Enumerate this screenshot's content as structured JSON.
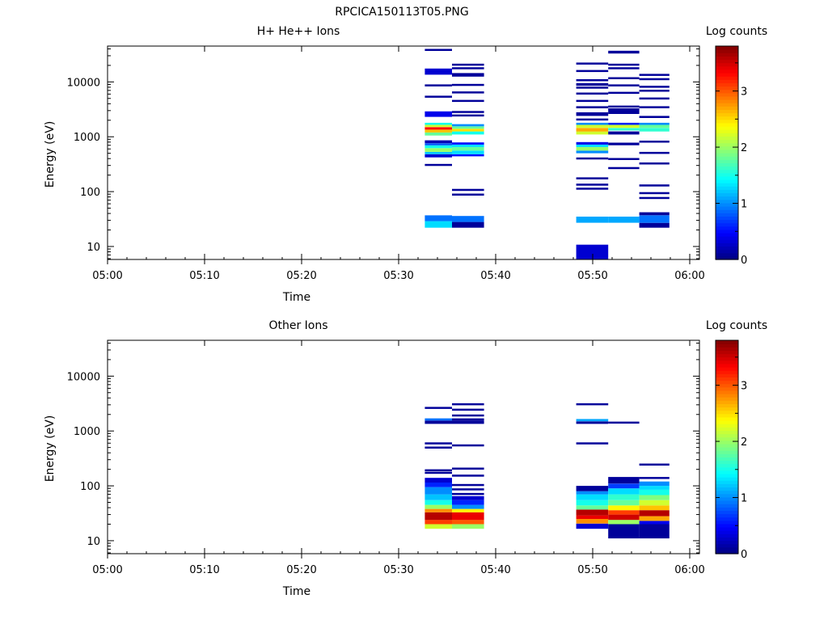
{
  "figure": {
    "title": "RPCICA150113T05.PNG"
  },
  "chart_data": [
    {
      "type": "heatmap",
      "title": "H+ He++ Ions",
      "xlabel": "Time",
      "ylabel": "Energy (eV)",
      "xticks": [
        "05:00",
        "05:10",
        "05:20",
        "05:30",
        "05:40",
        "05:50",
        "06:00"
      ],
      "xlim_minutes": [
        0,
        61
      ],
      "yscale": "log",
      "ylim": [
        5.8,
        45000
      ],
      "yticks": [
        "10",
        "100",
        "1000",
        "10000"
      ],
      "colorbar": {
        "label": "Log counts",
        "range": [
          0,
          3.8
        ],
        "ticks": [
          "0",
          "1",
          "2",
          "3"
        ]
      },
      "columns": [
        {
          "t0": 32.7,
          "t1": 35.5,
          "bins": [
            {
              "e0": 22,
              "e1": 29,
              "v": 1.3
            },
            {
              "e0": 29,
              "e1": 37,
              "v": 0.9
            },
            {
              "e0": 300,
              "e1": 320,
              "v": 0.1
            },
            {
              "e0": 420,
              "e1": 480,
              "v": 0.3
            },
            {
              "e0": 480,
              "e1": 530,
              "v": 1.2
            },
            {
              "e0": 530,
              "e1": 620,
              "v": 2.0
            },
            {
              "e0": 620,
              "e1": 700,
              "v": 1.5
            },
            {
              "e0": 700,
              "e1": 760,
              "v": 0.8
            },
            {
              "e0": 760,
              "e1": 860,
              "v": 0.2
            },
            {
              "e0": 1050,
              "e1": 1200,
              "v": 1.8
            },
            {
              "e0": 1200,
              "e1": 1350,
              "v": 2.6
            },
            {
              "e0": 1350,
              "e1": 1500,
              "v": 3.3
            },
            {
              "e0": 1500,
              "e1": 1650,
              "v": 2.2
            },
            {
              "e0": 1650,
              "e1": 1800,
              "v": 1.5
            },
            {
              "e0": 2300,
              "e1": 2900,
              "v": 0.4
            },
            {
              "e0": 5300,
              "e1": 5600,
              "v": 0.1
            },
            {
              "e0": 8600,
              "e1": 9000,
              "v": 0.1
            },
            {
              "e0": 13500,
              "e1": 17500,
              "v": 0.3
            },
            {
              "e0": 38000,
              "e1": 40000,
              "v": 0.1
            }
          ]
        },
        {
          "t0": 35.5,
          "t1": 38.8,
          "bins": [
            {
              "e0": 22,
              "e1": 28,
              "v": 0.1
            },
            {
              "e0": 28,
              "e1": 36,
              "v": 0.9
            },
            {
              "e0": 85,
              "e1": 92,
              "v": 0.1
            },
            {
              "e0": 105,
              "e1": 112,
              "v": 0.1
            },
            {
              "e0": 440,
              "e1": 480,
              "v": 0.5
            },
            {
              "e0": 480,
              "e1": 560,
              "v": 1.3
            },
            {
              "e0": 560,
              "e1": 650,
              "v": 1.8
            },
            {
              "e0": 650,
              "e1": 720,
              "v": 1.3
            },
            {
              "e0": 720,
              "e1": 790,
              "v": 0.5
            },
            {
              "e0": 1100,
              "e1": 1250,
              "v": 1.5
            },
            {
              "e0": 1250,
              "e1": 1400,
              "v": 2.5
            },
            {
              "e0": 1400,
              "e1": 1550,
              "v": 1.8
            },
            {
              "e0": 1550,
              "e1": 1700,
              "v": 1.0
            },
            {
              "e0": 2400,
              "e1": 2550,
              "v": 0.1
            },
            {
              "e0": 2800,
              "e1": 2950,
              "v": 0.1
            },
            {
              "e0": 4500,
              "e1": 4700,
              "v": 0.1
            },
            {
              "e0": 6400,
              "e1": 6700,
              "v": 0.1
            },
            {
              "e0": 8700,
              "e1": 9200,
              "v": 0.1
            },
            {
              "e0": 12500,
              "e1": 14500,
              "v": 0.1
            },
            {
              "e0": 17500,
              "e1": 18500,
              "v": 0.1
            },
            {
              "e0": 20500,
              "e1": 21500,
              "v": 0.1
            }
          ]
        },
        {
          "t0": 48.3,
          "t1": 51.6,
          "bins": [
            {
              "e0": 5.8,
              "e1": 10.8,
              "v": 0.3
            },
            {
              "e0": 27,
              "e1": 35,
              "v": 1.1
            },
            {
              "e0": 110,
              "e1": 118,
              "v": 0.1
            },
            {
              "e0": 130,
              "e1": 140,
              "v": 0.1
            },
            {
              "e0": 175,
              "e1": 182,
              "v": 0.1
            },
            {
              "e0": 400,
              "e1": 420,
              "v": 0.1
            },
            {
              "e0": 500,
              "e1": 560,
              "v": 1.0
            },
            {
              "e0": 560,
              "e1": 650,
              "v": 2.0
            },
            {
              "e0": 650,
              "e1": 720,
              "v": 1.3
            },
            {
              "e0": 720,
              "e1": 800,
              "v": 0.4
            },
            {
              "e0": 1100,
              "e1": 1250,
              "v": 2.2
            },
            {
              "e0": 1250,
              "e1": 1450,
              "v": 2.7
            },
            {
              "e0": 1450,
              "e1": 1650,
              "v": 2.2
            },
            {
              "e0": 1650,
              "e1": 1800,
              "v": 1.0
            },
            {
              "e0": 2000,
              "e1": 2150,
              "v": 0.1
            },
            {
              "e0": 2400,
              "e1": 2800,
              "v": 0.1
            },
            {
              "e0": 3300,
              "e1": 3600,
              "v": 0.1
            },
            {
              "e0": 4400,
              "e1": 4700,
              "v": 0.1
            },
            {
              "e0": 6000,
              "e1": 6400,
              "v": 0.1
            },
            {
              "e0": 7800,
              "e1": 8200,
              "v": 0.1
            },
            {
              "e0": 8500,
              "e1": 9500,
              "v": 0.1
            },
            {
              "e0": 10500,
              "e1": 11200,
              "v": 0.1
            },
            {
              "e0": 15500,
              "e1": 16500,
              "v": 0.1
            },
            {
              "e0": 21000,
              "e1": 22500,
              "v": 0.1
            }
          ]
        },
        {
          "t0": 51.6,
          "t1": 54.8,
          "bins": [
            {
              "e0": 27,
              "e1": 35,
              "v": 1.1
            },
            {
              "e0": 260,
              "e1": 280,
              "v": 0.1
            },
            {
              "e0": 380,
              "e1": 410,
              "v": 0.1
            },
            {
              "e0": 700,
              "e1": 780,
              "v": 0.1
            },
            {
              "e0": 1100,
              "e1": 1250,
              "v": 0.1
            },
            {
              "e0": 1300,
              "e1": 1450,
              "v": 1.6
            },
            {
              "e0": 1450,
              "e1": 1650,
              "v": 2.2
            },
            {
              "e0": 1650,
              "e1": 1800,
              "v": 0.6
            },
            {
              "e0": 2600,
              "e1": 3300,
              "v": 0.1
            },
            {
              "e0": 3400,
              "e1": 3700,
              "v": 0.1
            },
            {
              "e0": 6300,
              "e1": 6600,
              "v": 0.1
            },
            {
              "e0": 8500,
              "e1": 9000,
              "v": 0.1
            },
            {
              "e0": 11500,
              "e1": 12200,
              "v": 0.1
            },
            {
              "e0": 17500,
              "e1": 18500,
              "v": 0.1
            },
            {
              "e0": 20500,
              "e1": 21500,
              "v": 0.1
            },
            {
              "e0": 33000,
              "e1": 37000,
              "v": 0.1
            }
          ]
        },
        {
          "t0": 54.8,
          "t1": 57.9,
          "bins": [
            {
              "e0": 22,
              "e1": 27,
              "v": 0.1
            },
            {
              "e0": 27,
              "e1": 37,
              "v": 0.9
            },
            {
              "e0": 37,
              "e1": 42,
              "v": 0.1
            },
            {
              "e0": 75,
              "e1": 80,
              "v": 0.1
            },
            {
              "e0": 92,
              "e1": 98,
              "v": 0.1
            },
            {
              "e0": 125,
              "e1": 135,
              "v": 0.1
            },
            {
              "e0": 320,
              "e1": 340,
              "v": 0.1
            },
            {
              "e0": 500,
              "e1": 530,
              "v": 0.1
            },
            {
              "e0": 800,
              "e1": 850,
              "v": 0.1
            },
            {
              "e0": 1250,
              "e1": 1450,
              "v": 1.6
            },
            {
              "e0": 1450,
              "e1": 1650,
              "v": 1.8
            },
            {
              "e0": 1650,
              "e1": 1800,
              "v": 1.0
            },
            {
              "e0": 2200,
              "e1": 2400,
              "v": 0.1
            },
            {
              "e0": 3400,
              "e1": 3600,
              "v": 0.1
            },
            {
              "e0": 4900,
              "e1": 5200,
              "v": 0.1
            },
            {
              "e0": 6800,
              "e1": 7200,
              "v": 0.1
            },
            {
              "e0": 8000,
              "e1": 8500,
              "v": 0.1
            },
            {
              "e0": 11000,
              "e1": 11700,
              "v": 0.1
            },
            {
              "e0": 13000,
              "e1": 14000,
              "v": 0.1
            }
          ]
        }
      ]
    },
    {
      "type": "heatmap",
      "title": "Other Ions",
      "xlabel": "Time",
      "ylabel": "Energy (eV)",
      "xticks": [
        "05:00",
        "05:10",
        "05:20",
        "05:30",
        "05:40",
        "05:50",
        "06:00"
      ],
      "xlim_minutes": [
        0,
        61
      ],
      "yscale": "log",
      "ylim": [
        5.8,
        45000
      ],
      "yticks": [
        "10",
        "100",
        "1000",
        "10000"
      ],
      "colorbar": {
        "label": "Log counts",
        "range": [
          0,
          3.8
        ],
        "ticks": [
          "0",
          "1",
          "2",
          "3"
        ]
      },
      "columns": [
        {
          "t0": 32.7,
          "t1": 35.5,
          "bins": [
            {
              "e0": 16.5,
              "e1": 20,
              "v": 2.2
            },
            {
              "e0": 20,
              "e1": 24,
              "v": 3.1
            },
            {
              "e0": 24,
              "e1": 33,
              "v": 3.6
            },
            {
              "e0": 33,
              "e1": 38,
              "v": 2.8
            },
            {
              "e0": 38,
              "e1": 45,
              "v": 2.0
            },
            {
              "e0": 45,
              "e1": 55,
              "v": 1.5
            },
            {
              "e0": 55,
              "e1": 70,
              "v": 1.2
            },
            {
              "e0": 70,
              "e1": 95,
              "v": 1.0
            },
            {
              "e0": 95,
              "e1": 115,
              "v": 0.6
            },
            {
              "e0": 115,
              "e1": 140,
              "v": 0.3
            },
            {
              "e0": 170,
              "e1": 180,
              "v": 0.1
            },
            {
              "e0": 190,
              "e1": 200,
              "v": 0.1
            },
            {
              "e0": 480,
              "e1": 520,
              "v": 0.1
            },
            {
              "e0": 580,
              "e1": 620,
              "v": 0.1
            },
            {
              "e0": 1350,
              "e1": 1550,
              "v": 0.1
            },
            {
              "e0": 1550,
              "e1": 1700,
              "v": 0.9
            },
            {
              "e0": 2600,
              "e1": 2750,
              "v": 0.1
            }
          ]
        },
        {
          "t0": 35.5,
          "t1": 38.8,
          "bins": [
            {
              "e0": 16.5,
              "e1": 20,
              "v": 2.0
            },
            {
              "e0": 20,
              "e1": 24,
              "v": 3.0
            },
            {
              "e0": 24,
              "e1": 33,
              "v": 3.4
            },
            {
              "e0": 33,
              "e1": 38,
              "v": 2.4
            },
            {
              "e0": 38,
              "e1": 45,
              "v": 1.0
            },
            {
              "e0": 45,
              "e1": 55,
              "v": 0.6
            },
            {
              "e0": 55,
              "e1": 65,
              "v": 0.3
            },
            {
              "e0": 68,
              "e1": 74,
              "v": 0.1
            },
            {
              "e0": 85,
              "e1": 90,
              "v": 0.1
            },
            {
              "e0": 100,
              "e1": 108,
              "v": 0.1
            },
            {
              "e0": 150,
              "e1": 160,
              "v": 0.1
            },
            {
              "e0": 205,
              "e1": 215,
              "v": 0.1
            },
            {
              "e0": 540,
              "e1": 570,
              "v": 0.1
            },
            {
              "e0": 1350,
              "e1": 1550,
              "v": 0.1
            },
            {
              "e0": 1550,
              "e1": 1700,
              "v": 0.1
            },
            {
              "e0": 1900,
              "e1": 2000,
              "v": 0.1
            },
            {
              "e0": 2400,
              "e1": 2550,
              "v": 0.1
            },
            {
              "e0": 3000,
              "e1": 3200,
              "v": 0.1
            }
          ]
        },
        {
          "t0": 48.3,
          "t1": 51.6,
          "bins": [
            {
              "e0": 16.5,
              "e1": 20.5,
              "v": 0.3
            },
            {
              "e0": 20.5,
              "e1": 25,
              "v": 2.8
            },
            {
              "e0": 25,
              "e1": 29,
              "v": 3.4
            },
            {
              "e0": 29,
              "e1": 37,
              "v": 3.6
            },
            {
              "e0": 37,
              "e1": 44,
              "v": 1.8
            },
            {
              "e0": 44,
              "e1": 55,
              "v": 1.5
            },
            {
              "e0": 55,
              "e1": 70,
              "v": 1.3
            },
            {
              "e0": 70,
              "e1": 80,
              "v": 1.0
            },
            {
              "e0": 80,
              "e1": 100,
              "v": 0.1
            },
            {
              "e0": 580,
              "e1": 620,
              "v": 0.1
            },
            {
              "e0": 1350,
              "e1": 1500,
              "v": 0.1
            },
            {
              "e0": 1500,
              "e1": 1650,
              "v": 1.1
            },
            {
              "e0": 3000,
              "e1": 3200,
              "v": 0.1
            }
          ]
        },
        {
          "t0": 51.6,
          "t1": 54.8,
          "bins": [
            {
              "e0": 11,
              "e1": 20,
              "v": 0.1
            },
            {
              "e0": 20,
              "e1": 24,
              "v": 2.0
            },
            {
              "e0": 24,
              "e1": 30,
              "v": 3.5
            },
            {
              "e0": 30,
              "e1": 36,
              "v": 3.1
            },
            {
              "e0": 36,
              "e1": 44,
              "v": 2.4
            },
            {
              "e0": 44,
              "e1": 55,
              "v": 1.8
            },
            {
              "e0": 55,
              "e1": 70,
              "v": 1.6
            },
            {
              "e0": 70,
              "e1": 90,
              "v": 1.3
            },
            {
              "e0": 90,
              "e1": 110,
              "v": 0.7
            },
            {
              "e0": 110,
              "e1": 145,
              "v": 0.1
            },
            {
              "e0": 1400,
              "e1": 1480,
              "v": 0.1
            }
          ]
        },
        {
          "t0": 54.8,
          "t1": 57.9,
          "bins": [
            {
              "e0": 11,
              "e1": 20,
              "v": 0.1
            },
            {
              "e0": 20,
              "e1": 23,
              "v": 0.4
            },
            {
              "e0": 23,
              "e1": 28,
              "v": 2.7
            },
            {
              "e0": 28,
              "e1": 36,
              "v": 3.6
            },
            {
              "e0": 36,
              "e1": 44,
              "v": 2.6
            },
            {
              "e0": 44,
              "e1": 55,
              "v": 2.2
            },
            {
              "e0": 55,
              "e1": 68,
              "v": 1.9
            },
            {
              "e0": 68,
              "e1": 85,
              "v": 1.5
            },
            {
              "e0": 85,
              "e1": 100,
              "v": 1.3
            },
            {
              "e0": 100,
              "e1": 120,
              "v": 1.0
            },
            {
              "e0": 135,
              "e1": 145,
              "v": 0.1
            },
            {
              "e0": 235,
              "e1": 255,
              "v": 0.1
            }
          ]
        }
      ]
    }
  ]
}
